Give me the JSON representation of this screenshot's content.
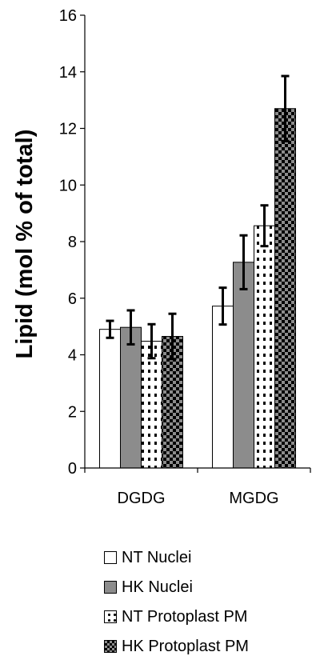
{
  "chart_data": {
    "type": "bar",
    "title": "",
    "xlabel": "",
    "ylabel": "Lipid (mol % of total)",
    "categories": [
      "DGDG",
      "MGDG"
    ],
    "ylim": [
      0,
      16
    ],
    "yticks": [
      0,
      2,
      4,
      6,
      8,
      10,
      12,
      14,
      16
    ],
    "ytick_labels": [
      "0",
      "2",
      "4",
      "6",
      "8",
      "10",
      "12",
      "14",
      "16"
    ],
    "grid": false,
    "legend_placement": "bottom",
    "series": [
      {
        "name": "NT Nuclei",
        "values": [
          4.9,
          5.72
        ],
        "errors": [
          0.3,
          0.65
        ],
        "fill": "white"
      },
      {
        "name": "HK Nuclei",
        "values": [
          4.97,
          7.27
        ],
        "errors": [
          0.6,
          0.95
        ],
        "fill": "gray"
      },
      {
        "name": "NT Protoplast PM",
        "values": [
          4.48,
          8.56
        ],
        "errors": [
          0.6,
          0.72
        ],
        "fill": "dots"
      },
      {
        "name": "HK Protoplast PM",
        "values": [
          4.65,
          12.7
        ],
        "errors": [
          0.8,
          1.15
        ],
        "fill": "checker"
      }
    ]
  }
}
